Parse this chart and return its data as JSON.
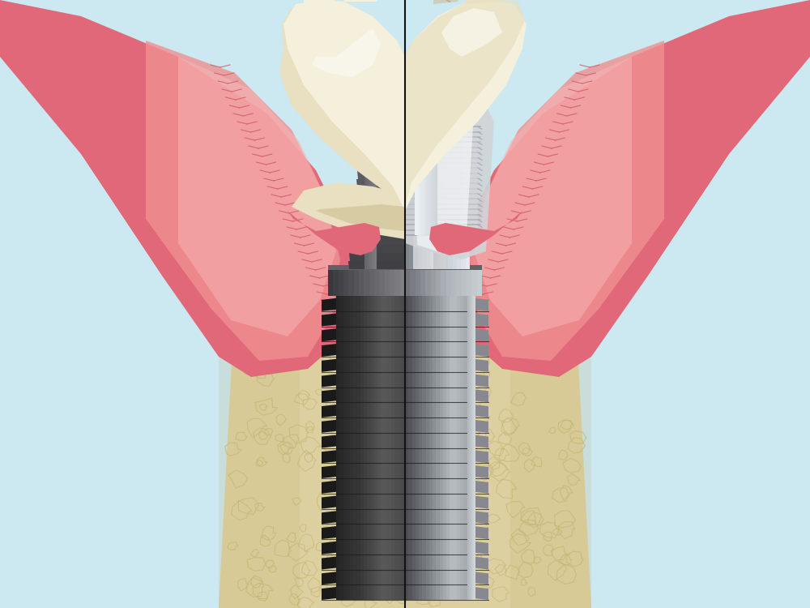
{
  "bg_color": "#cce8f0",
  "divider_color": "#111111",
  "divider_lw": 1.5,
  "gum_outer": "#e06878",
  "gum_inner": "#f09090",
  "gum_highlight": "#f8b8b8",
  "bone_color": "#ddd0a0",
  "bone_dark": "#c8b878",
  "bone_shadow": "#b8a860",
  "implant_very_dark": "#252525",
  "implant_dark": "#383838",
  "implant_mid": "#606060",
  "implant_light": "#909090",
  "implant_highlight": "#c8c8c8",
  "implant_bright": "#e0e0e0",
  "abutment_dark": "#505055",
  "abutment_mid": "#707075",
  "abutment_light": "#9898a0",
  "custom_abt_dark": "#7878808",
  "custom_abt_light": "#d8dce0",
  "custom_abt_bright": "#f0f2f4",
  "crown_base": "#e8e0c0",
  "crown_light": "#f4f0dc",
  "crown_highlight": "#faf8f0",
  "crown_shadow": "#c8b888",
  "crown_dark": "#b0a070",
  "fig_width": 10.0,
  "fig_height": 7.5,
  "dpi": 100
}
